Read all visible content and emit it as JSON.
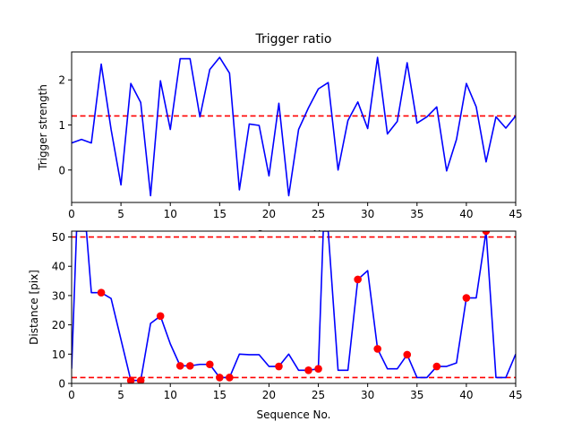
{
  "chart_data": [
    {
      "type": "line",
      "title": "Trigger ratio",
      "xlabel": "Sequence No.",
      "ylabel": "Trigger strength",
      "xlim": [
        0,
        45
      ],
      "ylim": [
        -0.72,
        2.62
      ],
      "xticks": [
        0,
        5,
        10,
        15,
        20,
        25,
        30,
        35,
        40,
        45
      ],
      "yticks": [
        0,
        1,
        2
      ],
      "grid": false,
      "series": [
        {
          "color": "#0000ff",
          "x": [
            0,
            1,
            2,
            3,
            4,
            5,
            6,
            7,
            8,
            9,
            10,
            11,
            12,
            13,
            14,
            15,
            16,
            17,
            18,
            19,
            20,
            21,
            22,
            23,
            24,
            25,
            26,
            27,
            28,
            29,
            30,
            31,
            32,
            33,
            34,
            35,
            36,
            37,
            38,
            39,
            40,
            41,
            42,
            43,
            44,
            45
          ],
          "values": [
            0.6,
            0.68,
            0.6,
            2.35,
            0.9,
            -0.33,
            1.92,
            1.5,
            -0.57,
            1.98,
            0.9,
            2.47,
            2.47,
            1.18,
            2.23,
            2.5,
            2.15,
            -0.44,
            1.02,
            0.99,
            -0.13,
            1.48,
            -0.57,
            0.9,
            1.38,
            1.8,
            1.94,
            0.0,
            1.1,
            1.51,
            0.92,
            2.5,
            0.8,
            1.08,
            2.38,
            1.04,
            1.18,
            1.4,
            -0.02,
            0.68,
            1.92,
            1.4,
            0.18,
            1.18,
            0.93,
            1.2
          ]
        }
      ],
      "reference_lines": [
        {
          "y": 1.2,
          "color": "#ff0000",
          "style": "dashed"
        }
      ]
    },
    {
      "type": "line",
      "title": "",
      "xlabel": "Sequence No.",
      "ylabel": "Distance [pix]",
      "xlim": [
        0,
        45
      ],
      "ylim": [
        0,
        52
      ],
      "xticks": [
        0,
        5,
        10,
        15,
        20,
        25,
        30,
        35,
        40,
        45
      ],
      "yticks": [
        0,
        10,
        20,
        30,
        40,
        50
      ],
      "grid": false,
      "series": [
        {
          "color": "#0000ff",
          "x": [
            0,
            0.5,
            1,
            1.5,
            2,
            3,
            4,
            5,
            6,
            7,
            8,
            9,
            10,
            11,
            12,
            13,
            14,
            15,
            16,
            17,
            18,
            19,
            20,
            21,
            22,
            23,
            24,
            25,
            25.5,
            26,
            27,
            28,
            29,
            30,
            31,
            32,
            33,
            34,
            35,
            36,
            37,
            38,
            39,
            40,
            41,
            42,
            43,
            44,
            45
          ],
          "values": [
            5,
            52,
            52,
            52,
            31,
            31,
            29,
            15,
            1,
            1,
            20.5,
            23,
            13.5,
            6,
            6,
            6.5,
            6.5,
            2,
            2,
            10,
            9.8,
            9.8,
            5.8,
            5.8,
            10,
            4.5,
            4.5,
            5,
            52,
            52,
            4.5,
            4.5,
            35.5,
            38.5,
            11.8,
            5,
            5,
            9.8,
            2,
            2,
            5.8,
            5.8,
            7,
            29.2,
            29.2,
            52,
            2,
            2,
            10
          ]
        }
      ],
      "markers": {
        "color": "#ff0000",
        "x": [
          3,
          6,
          7,
          9,
          11,
          12,
          14,
          15,
          16,
          21,
          24,
          25,
          29,
          31,
          34,
          37,
          40,
          42
        ],
        "values": [
          31,
          1,
          1,
          23,
          6,
          6,
          6.5,
          2,
          2,
          5.8,
          4.5,
          5,
          35.5,
          11.8,
          9.8,
          5.8,
          29.2,
          52
        ]
      },
      "reference_lines": [
        {
          "y": 50,
          "color": "#ff0000",
          "style": "dashed"
        },
        {
          "y": 2,
          "color": "#ff0000",
          "style": "dashed"
        }
      ]
    }
  ]
}
